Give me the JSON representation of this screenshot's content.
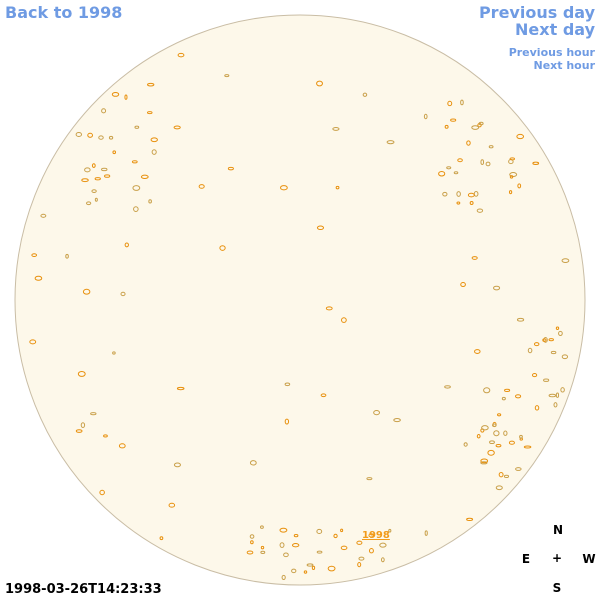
{
  "nav": {
    "back": "Back to 1998",
    "previous_day": "Previous day",
    "next_day": "Next day",
    "previous_hour": "Previous hour",
    "next_hour": "Next hour"
  },
  "timestamp": "1998-03-26T14:23:33",
  "disk_label": "1998",
  "compass": {
    "north": "N",
    "east": "E",
    "center": "+",
    "west": "W",
    "south": "S"
  }
}
